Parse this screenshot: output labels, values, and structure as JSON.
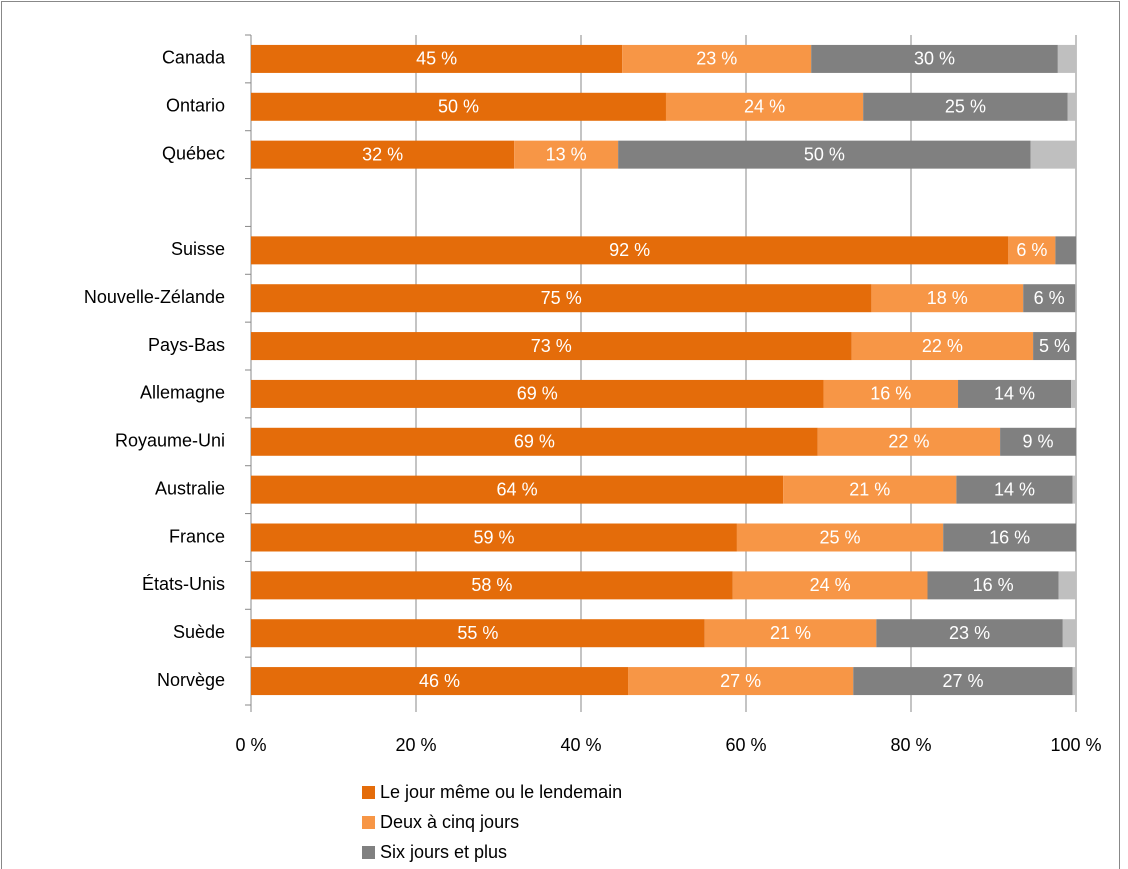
{
  "chart_data": {
    "type": "stacked_barh",
    "categories": [
      "Canada",
      "Ontario",
      "Québec",
      null,
      "Suisse",
      "Nouvelle-Zélande",
      "Pays-Bas",
      "Allemagne",
      "Royaume-Uni",
      "Australie",
      "France",
      "États-Unis",
      "Suède",
      "Norvège"
    ],
    "series": [
      {
        "name": "Le jour même ou le lendemain",
        "color": "#e46c0a",
        "values": [
          45.0,
          50.3,
          31.9,
          null,
          91.8,
          75.2,
          72.8,
          69.4,
          68.7,
          64.5,
          58.9,
          58.4,
          55.0,
          45.7
        ],
        "value_labels": [
          "45 %",
          "50 %",
          "32 %",
          null,
          "92 %",
          "75 %",
          "73 %",
          "69 %",
          "69 %",
          "64 %",
          "59 %",
          "58 %",
          "55 %",
          "46 %"
        ]
      },
      {
        "name": "Deux à cinq jours",
        "color": "#f79646",
        "values": [
          22.9,
          23.9,
          12.6,
          null,
          5.7,
          18.4,
          22.0,
          16.3,
          22.1,
          21.0,
          25.0,
          23.6,
          20.8,
          27.3
        ],
        "value_labels": [
          "23 %",
          "24 %",
          "13 %",
          null,
          "6 %",
          "18 %",
          "22 %",
          "16 %",
          "22 %",
          "21 %",
          "25 %",
          "24 %",
          "21 %",
          "27 %"
        ]
      },
      {
        "name": "Six jours et plus",
        "color": "#808080",
        "values": [
          29.9,
          24.8,
          50.0,
          null,
          2.5,
          6.3,
          5.2,
          13.7,
          9.2,
          14.1,
          16.1,
          15.9,
          22.6,
          26.6
        ],
        "value_labels": [
          "30 %",
          "25 %",
          "50 %",
          null,
          null,
          "6 %",
          "5 %",
          "14 %",
          "9 %",
          "14 %",
          "16 %",
          "16 %",
          "23 %",
          "27 %"
        ]
      },
      {
        "color": "#bfbfbf",
        "values": [
          2.2,
          1.0,
          5.5,
          null,
          0,
          0,
          0,
          0.6,
          0,
          0.4,
          0,
          2.1,
          1.6,
          0.4
        ]
      }
    ],
    "xlim": [
      0,
      100
    ],
    "xticks": [
      {
        "value": 0,
        "label": "0 %"
      },
      {
        "value": 20,
        "label": "20 %"
      },
      {
        "value": 40,
        "label": "40 %"
      },
      {
        "value": 60,
        "label": "60 %"
      },
      {
        "value": 80,
        "label": "80 %"
      },
      {
        "value": 100,
        "label": "100 %"
      }
    ],
    "grid": true
  }
}
